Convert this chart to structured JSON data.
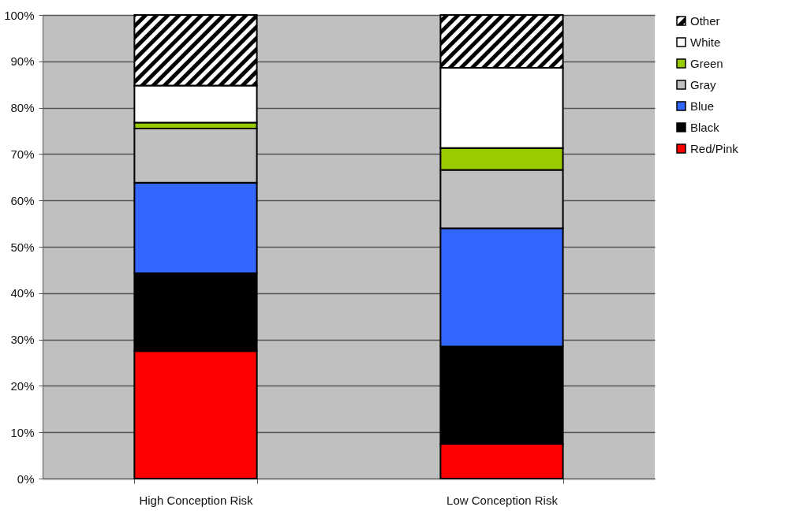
{
  "chart_data": {
    "type": "bar",
    "stacked": true,
    "categories": [
      "High Conception Risk",
      "Low Conception Risk"
    ],
    "series": [
      {
        "name": "Red/Pink",
        "color": "#ff0000",
        "values": [
          27.5,
          7.5
        ]
      },
      {
        "name": "Black",
        "color": "#000000",
        "values": [
          16.8,
          21.0
        ]
      },
      {
        "name": "Blue",
        "color": "#3366ff",
        "values": [
          19.5,
          25.5
        ]
      },
      {
        "name": "Gray",
        "color": "#c0c0c0",
        "values": [
          11.7,
          12.6
        ]
      },
      {
        "name": "Green",
        "color": "#99cc00",
        "values": [
          1.3,
          4.7
        ]
      },
      {
        "name": "White",
        "color": "#ffffff",
        "values": [
          8.0,
          17.3
        ]
      },
      {
        "name": "Other",
        "color": "#000000",
        "values": [
          15.2,
          11.4
        ]
      }
    ],
    "ylim": [
      0,
      100
    ],
    "yticks": [
      {
        "value": 0,
        "label": "0%"
      },
      {
        "value": 10,
        "label": "10%"
      },
      {
        "value": 20,
        "label": "20%"
      },
      {
        "value": 30,
        "label": "30%"
      },
      {
        "value": 40,
        "label": "40%"
      },
      {
        "value": 50,
        "label": "50%"
      },
      {
        "value": 60,
        "label": "60%"
      },
      {
        "value": 70,
        "label": "70%"
      },
      {
        "value": 80,
        "label": "80%"
      },
      {
        "value": 90,
        "label": "90%"
      },
      {
        "value": 100,
        "label": "100%"
      }
    ],
    "grid": "y",
    "legend": "right"
  }
}
